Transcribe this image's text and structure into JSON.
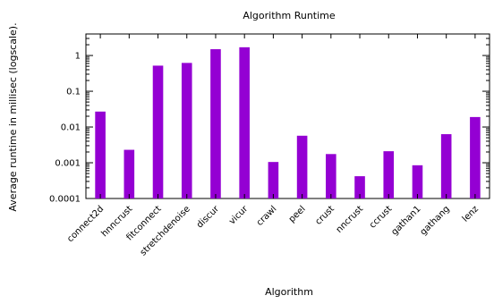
{
  "chart_data": {
    "type": "bar",
    "title": "Algorithm Runtime",
    "xlabel": "Algorithm",
    "ylabel": "Average runtime in millisec (logscale).",
    "yscale": "log",
    "ylim": [
      0.0001,
      4
    ],
    "yticks": [
      "0.0001",
      "0.001",
      "0.01",
      "0.1",
      "1"
    ],
    "grid": false,
    "legend": "none",
    "categories": [
      "connect2d",
      "hnncrust",
      "fitconnect",
      "stretchdenoise",
      "discur",
      "vicur",
      "crawl",
      "peel",
      "crust",
      "nncrust",
      "ccrust",
      "gathan1",
      "gathang",
      "lenz"
    ],
    "values": [
      0.027,
      0.0023,
      0.52,
      0.62,
      1.5,
      1.7,
      0.00105,
      0.0057,
      0.00175,
      0.00042,
      0.0021,
      0.00085,
      0.0063,
      0.019
    ],
    "bar_color": "#9400d3"
  }
}
